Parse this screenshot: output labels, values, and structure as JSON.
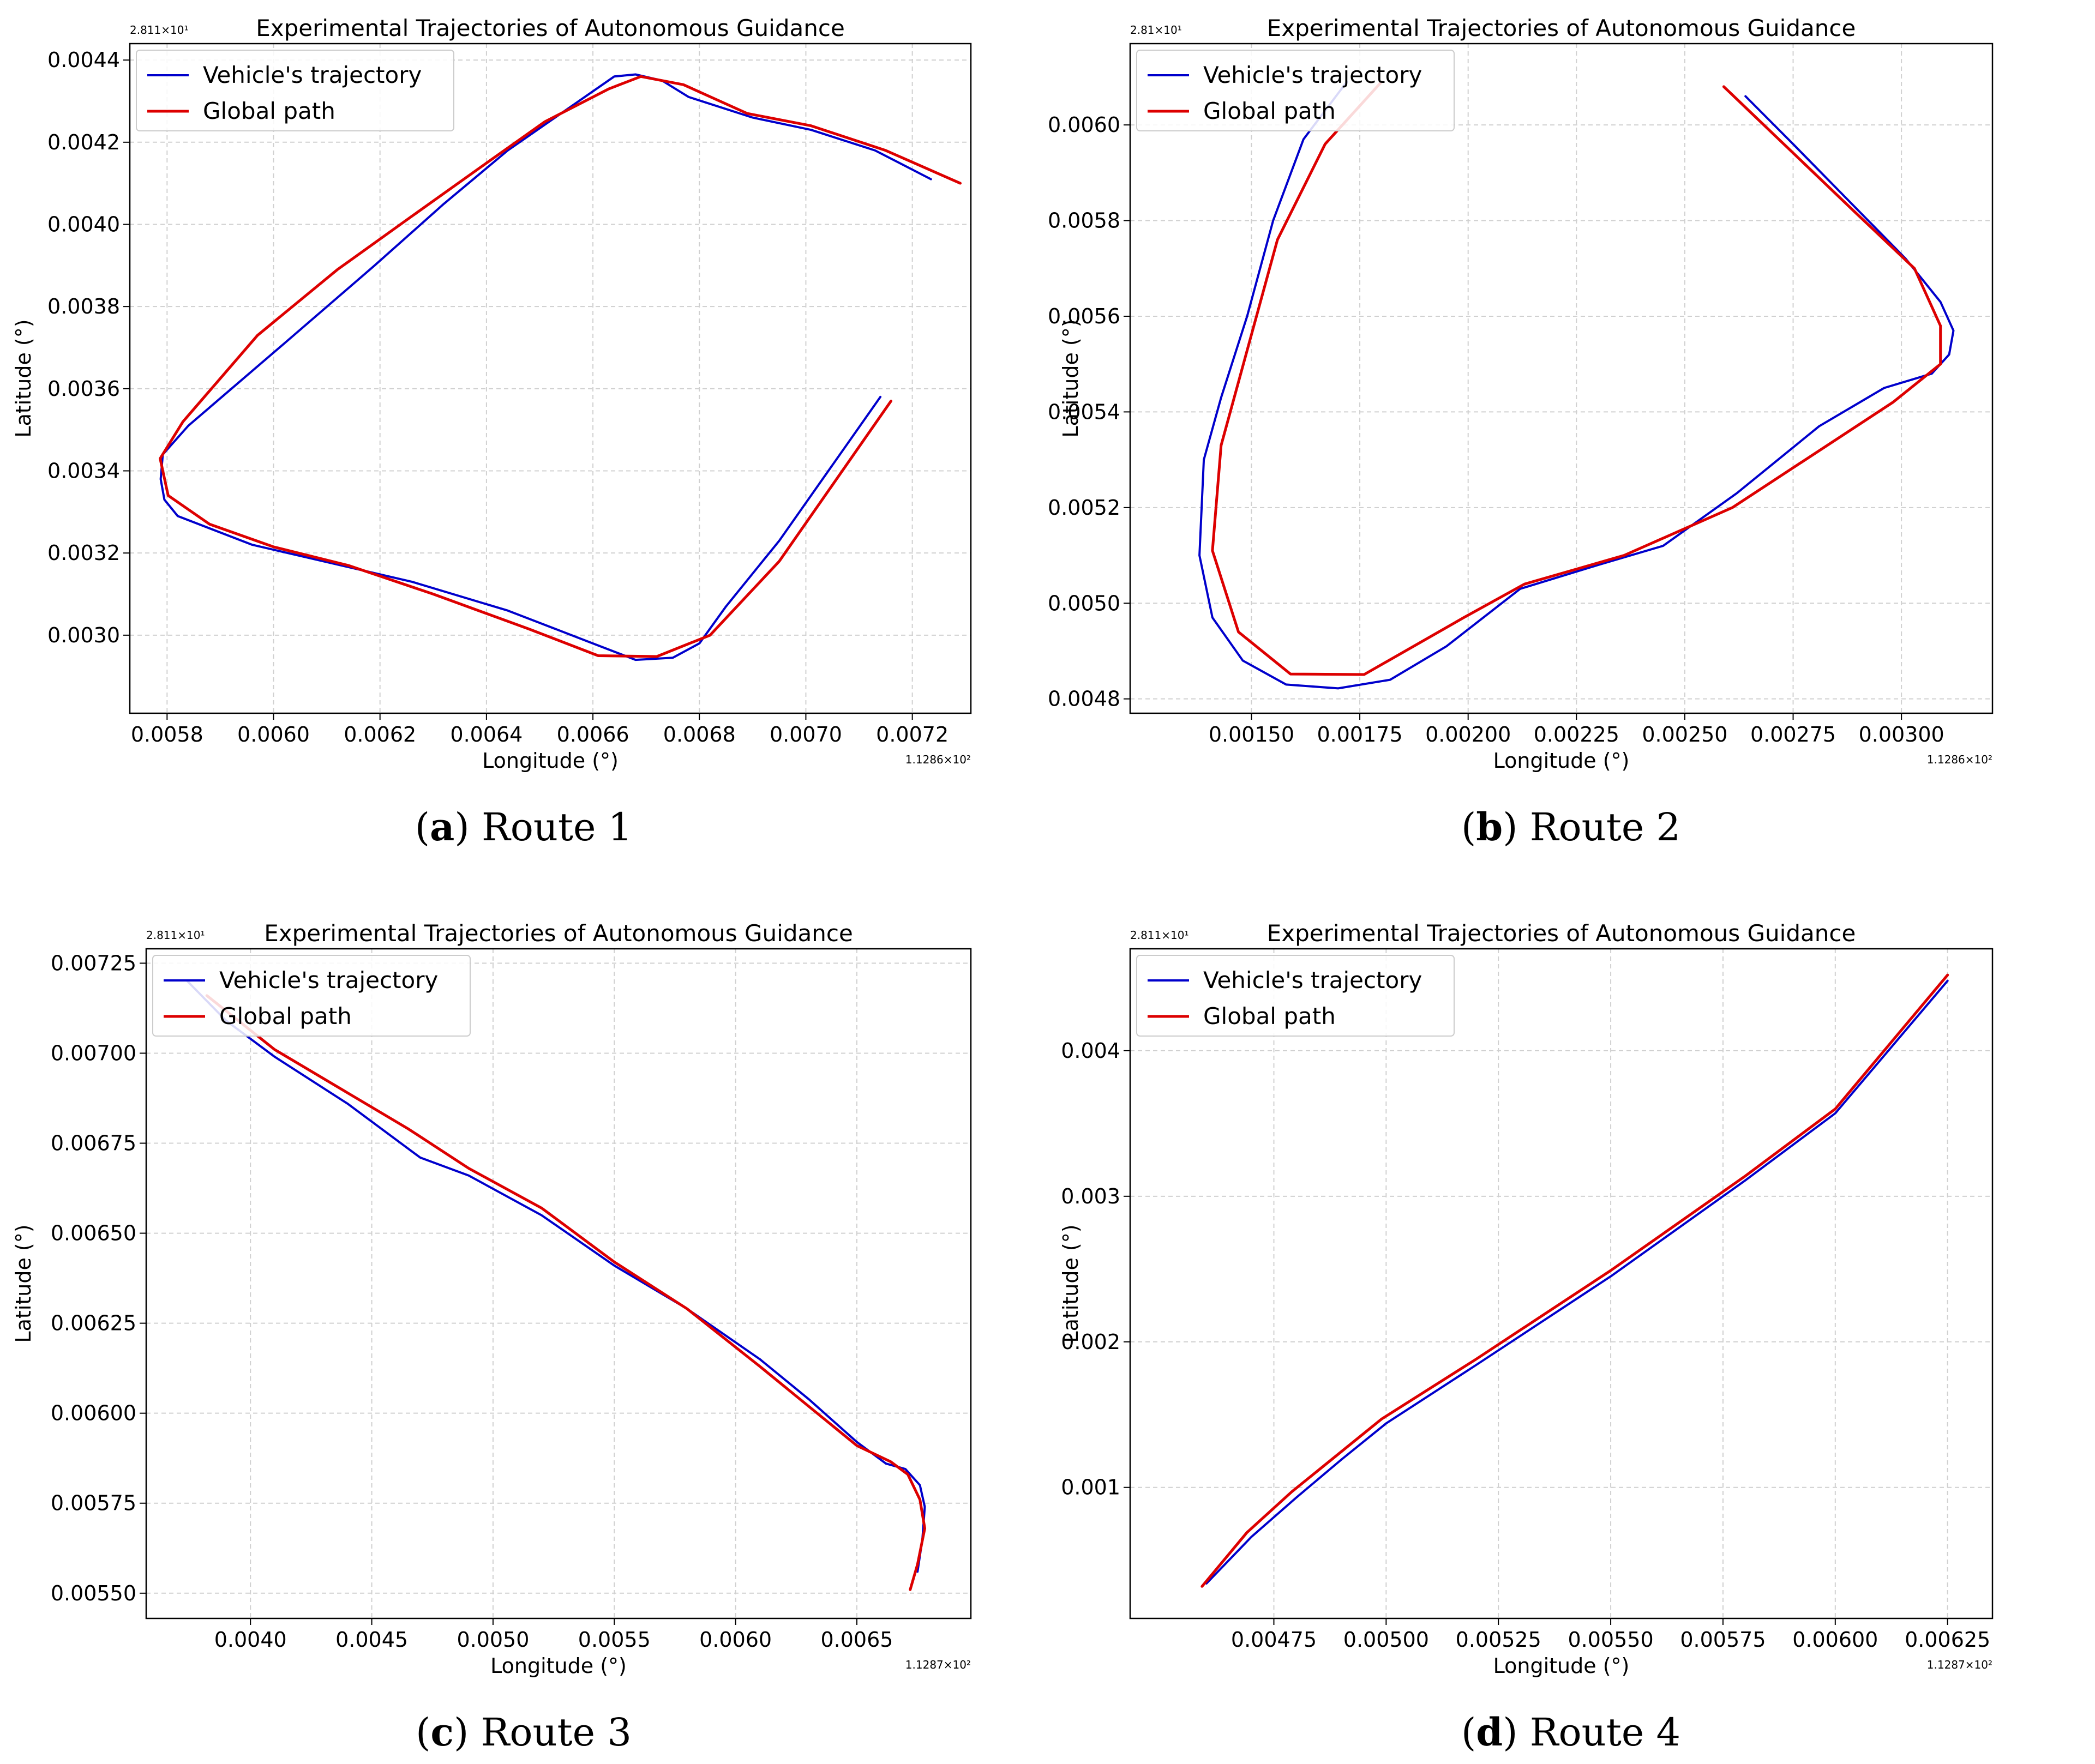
{
  "figure": {
    "captions": [
      {
        "letter": "a",
        "paren_open": "(",
        "paren_close": ")",
        "text": "Route 1"
      },
      {
        "letter": "b",
        "paren_open": "(",
        "paren_close": ")",
        "text": "Route 2"
      },
      {
        "letter": "c",
        "paren_open": "(",
        "paren_close": ")",
        "text": "Route 3"
      },
      {
        "letter": "d",
        "paren_open": "(",
        "paren_close": ")",
        "text": "Route 4"
      }
    ]
  },
  "colors": {
    "vehicle": "#0000cc",
    "global": "#dd0000",
    "grid": "#d0d0d0"
  },
  "chart_data": [
    {
      "type": "line",
      "title": "Experimental Trajectories of Autonomous Guidance",
      "xlabel": "Longitude (°)",
      "ylabel": "Latitude (°)",
      "x_offset_label": "1.1286×10²",
      "y_offset_label": "2.811×10¹",
      "xlim": [
        0.00573,
        0.00731
      ],
      "ylim": [
        0.00281,
        0.00444
      ],
      "xticks": [
        0.0058,
        0.006,
        0.0062,
        0.0064,
        0.0066,
        0.0068,
        0.007,
        0.0072
      ],
      "xtick_labels": [
        "0.0058",
        "0.0060",
        "0.0062",
        "0.0064",
        "0.0066",
        "0.0068",
        "0.0070",
        "0.0072"
      ],
      "yticks": [
        0.003,
        0.0032,
        0.0034,
        0.0036,
        0.0038,
        0.004,
        0.0042,
        0.0044
      ],
      "ytick_labels": [
        "0.0030",
        "0.0032",
        "0.0034",
        "0.0036",
        "0.0038",
        "0.0040",
        "0.0042",
        "0.0044"
      ],
      "legend": {
        "position": "upper-left",
        "entries": [
          "Vehicle's trajectory",
          "Global path"
        ]
      },
      "series": [
        {
          "name": "Vehicle's trajectory",
          "color": "#0000cc",
          "width": 4,
          "x": [
            0.007235,
            0.00713,
            0.00701,
            0.0069,
            0.00678,
            0.00673,
            0.00668,
            0.00664,
            0.00654,
            0.00644,
            0.00632,
            0.00619,
            0.00602,
            0.00584,
            0.005792,
            0.005788,
            0.005795,
            0.00582,
            0.00596,
            0.00626,
            0.00644,
            0.00659,
            0.00668,
            0.00675,
            0.0068,
            0.00685,
            0.00695,
            0.00714
          ],
          "y": [
            0.00411,
            0.00418,
            0.00423,
            0.00426,
            0.00431,
            0.00435,
            0.004365,
            0.00436,
            0.00427,
            0.00418,
            0.00405,
            0.0039,
            0.00371,
            0.00351,
            0.00344,
            0.00338,
            0.00333,
            0.00329,
            0.00322,
            0.00313,
            0.00306,
            0.002985,
            0.00294,
            0.002945,
            0.00298,
            0.00307,
            0.00323,
            0.00358
          ]
        },
        {
          "name": "Global path",
          "color": "#dd0000",
          "width": 5,
          "x": [
            0.00729,
            0.00715,
            0.00701,
            0.00689,
            0.00677,
            0.00669,
            0.00663,
            0.00651,
            0.00639,
            0.00626,
            0.00612,
            0.00597,
            0.00583,
            0.005787,
            0.005802,
            0.00588,
            0.006,
            0.00614,
            0.0063,
            0.00648,
            0.00661,
            0.00672,
            0.00682,
            0.00695,
            0.00716
          ],
          "y": [
            0.0041,
            0.00418,
            0.00424,
            0.00427,
            0.00434,
            0.00436,
            0.00433,
            0.00425,
            0.00414,
            0.00402,
            0.00389,
            0.00373,
            0.00352,
            0.00343,
            0.00334,
            0.00327,
            0.003215,
            0.00317,
            0.0031,
            0.003015,
            0.00295,
            0.002948,
            0.003,
            0.00318,
            0.00357
          ]
        }
      ]
    },
    {
      "type": "line",
      "title": "Experimental Trajectories of Autonomous Guidance",
      "xlabel": "Longitude (°)",
      "ylabel": "Latitude (°)",
      "x_offset_label": "1.1286×10²",
      "y_offset_label": "2.81×10¹",
      "xlim": [
        0.00122,
        0.00321
      ],
      "ylim": [
        0.00477,
        0.00617
      ],
      "xticks": [
        0.0015,
        0.00175,
        0.002,
        0.00225,
        0.0025,
        0.00275,
        0.003
      ],
      "xtick_labels": [
        "0.00150",
        "0.00175",
        "0.00200",
        "0.00225",
        "0.00250",
        "0.00275",
        "0.00300"
      ],
      "yticks": [
        0.0048,
        0.005,
        0.0052,
        0.0054,
        0.0056,
        0.0058,
        0.006
      ],
      "ytick_labels": [
        "0.0048",
        "0.0050",
        "0.0052",
        "0.0054",
        "0.0056",
        "0.0058",
        "0.0060"
      ],
      "legend": {
        "position": "upper-left",
        "entries": [
          "Vehicle's trajectory",
          "Global path"
        ]
      },
      "series": [
        {
          "name": "Vehicle's trajectory",
          "color": "#0000cc",
          "width": 4,
          "x": [
            0.00172,
            0.00162,
            0.00155,
            0.00149,
            0.00143,
            0.00139,
            0.00138,
            0.00141,
            0.00148,
            0.00158,
            0.0017,
            0.00182,
            0.00195,
            0.00212,
            0.0023,
            0.00245,
            0.00262,
            0.00281,
            0.00296,
            0.00307,
            0.00311,
            0.00312,
            0.00309,
            0.00301,
            0.00288,
            0.00275,
            0.00264
          ],
          "y": [
            0.00609,
            0.00597,
            0.0058,
            0.0056,
            0.00543,
            0.0053,
            0.0051,
            0.00497,
            0.00488,
            0.00483,
            0.004822,
            0.00484,
            0.00491,
            0.00503,
            0.00508,
            0.00512,
            0.00523,
            0.00537,
            0.00545,
            0.00548,
            0.00552,
            0.00557,
            0.00563,
            0.00572,
            0.00584,
            0.00596,
            0.00606
          ]
        },
        {
          "name": "Global path",
          "color": "#dd0000",
          "width": 5,
          "x": [
            0.0018,
            0.00167,
            0.00156,
            0.00143,
            0.00141,
            0.00147,
            0.00159,
            0.00176,
            0.00199,
            0.00213,
            0.00236,
            0.00261,
            0.00298,
            0.00309,
            0.00309,
            0.00303,
            0.00289,
            0.00259
          ],
          "y": [
            0.00609,
            0.00596,
            0.00576,
            0.00533,
            0.00511,
            0.00494,
            0.004852,
            0.004851,
            0.00497,
            0.00504,
            0.0051,
            0.0052,
            0.00542,
            0.0055,
            0.00558,
            0.0057,
            0.00582,
            0.00608
          ]
        }
      ]
    },
    {
      "type": "line",
      "title": "Experimental Trajectories of Autonomous Guidance",
      "xlabel": "Longitude (°)",
      "ylabel": "Latitude (°)",
      "x_offset_label": "1.1287×10²",
      "y_offset_label": "2.811×10¹",
      "xlim": [
        0.00357,
        0.00697
      ],
      "ylim": [
        0.00543,
        0.00729
      ],
      "xticks": [
        0.004,
        0.0045,
        0.005,
        0.0055,
        0.006,
        0.0065
      ],
      "xtick_labels": [
        "0.0040",
        "0.0045",
        "0.0050",
        "0.0055",
        "0.0060",
        "0.0065"
      ],
      "yticks": [
        0.0055,
        0.00575,
        0.006,
        0.00625,
        0.0065,
        0.00675,
        0.007,
        0.00725
      ],
      "ytick_labels": [
        "0.00550",
        "0.00575",
        "0.00600",
        "0.00625",
        "0.00650",
        "0.00675",
        "0.00700",
        "0.00725"
      ],
      "legend": {
        "position": "upper-left",
        "entries": [
          "Vehicle's trajectory",
          "Global path"
        ]
      },
      "series": [
        {
          "name": "Vehicle's trajectory",
          "color": "#0000cc",
          "width": 4,
          "x": [
            0.00374,
            0.0039,
            0.0041,
            0.0044,
            0.0047,
            0.0049,
            0.0052,
            0.0055,
            0.0058,
            0.0061,
            0.0063,
            0.0065,
            0.00662,
            0.0067,
            0.00676,
            0.00678,
            0.00677,
            0.00675
          ],
          "y": [
            0.0072,
            0.00709,
            0.00699,
            0.00686,
            0.00671,
            0.00666,
            0.00655,
            0.00641,
            0.00629,
            0.00615,
            0.00604,
            0.00592,
            0.00586,
            0.005845,
            0.0058,
            0.00574,
            0.00565,
            0.00556
          ]
        },
        {
          "name": "Global path",
          "color": "#dd0000",
          "width": 5,
          "x": [
            0.00382,
            0.0041,
            0.0044,
            0.00465,
            0.0049,
            0.0052,
            0.0055,
            0.0058,
            0.0061,
            0.0063,
            0.0065,
            0.00664,
            0.00671,
            0.00676,
            0.00678,
            0.00675,
            0.00672
          ],
          "y": [
            0.00716,
            0.00701,
            0.00689,
            0.00679,
            0.00668,
            0.00657,
            0.00642,
            0.00629,
            0.00613,
            0.00602,
            0.00591,
            0.005865,
            0.00583,
            0.00576,
            0.00568,
            0.00558,
            0.00551
          ]
        }
      ]
    },
    {
      "type": "line",
      "title": "Experimental Trajectories of Autonomous Guidance",
      "xlabel": "Longitude (°)",
      "ylabel": "Latitude (°)",
      "x_offset_label": "1.1287×10²",
      "y_offset_label": "2.811×10¹",
      "xlim": [
        0.00443,
        0.00635
      ],
      "ylim": [
        0.0001,
        0.0047
      ],
      "xticks": [
        0.00475,
        0.005,
        0.00525,
        0.0055,
        0.00575,
        0.006,
        0.00625
      ],
      "xtick_labels": [
        "0.00475",
        "0.00500",
        "0.00525",
        "0.00550",
        "0.00575",
        "0.00600",
        "0.00625"
      ],
      "yticks": [
        0.001,
        0.002,
        0.003,
        0.004
      ],
      "ytick_labels": [
        "0.001",
        "0.002",
        "0.003",
        "0.004"
      ],
      "legend": {
        "position": "upper-left",
        "entries": [
          "Vehicle's trajectory",
          "Global path"
        ]
      },
      "series": [
        {
          "name": "Vehicle's trajectory",
          "color": "#0000cc",
          "width": 4,
          "x": [
            0.0046,
            0.0047,
            0.0048,
            0.0049,
            0.005,
            0.0052,
            0.0055,
            0.0058,
            0.006,
            0.00625
          ],
          "y": [
            0.00034,
            0.00066,
            0.00093,
            0.00119,
            0.00144,
            0.00184,
            0.00245,
            0.00311,
            0.00357,
            0.00448
          ]
        },
        {
          "name": "Global path",
          "color": "#dd0000",
          "width": 5,
          "x": [
            0.00459,
            0.00469,
            0.00479,
            0.00489,
            0.00499,
            0.0052,
            0.0055,
            0.0058,
            0.006,
            0.00625
          ],
          "y": [
            0.00032,
            0.00069,
            0.00097,
            0.00122,
            0.00147,
            0.00188,
            0.00249,
            0.00314,
            0.0036,
            0.00452
          ]
        }
      ]
    }
  ]
}
